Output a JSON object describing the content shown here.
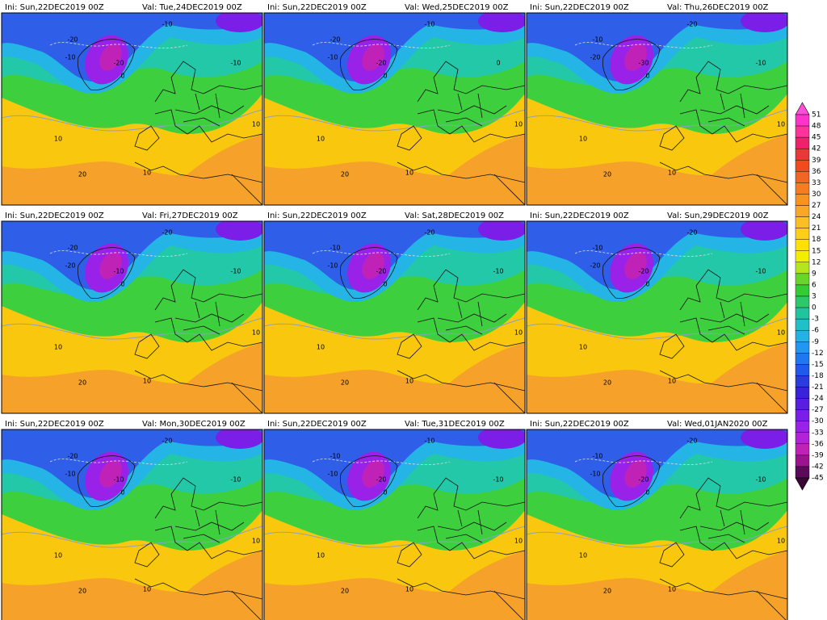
{
  "panels": [
    {
      "init": "Ini: Sun,22DEC2019 00Z",
      "valid": "Val: Tue,24DEC2019 00Z",
      "contour_labels": [
        -20,
        -10,
        -10,
        -20,
        0,
        -10,
        10,
        10,
        20,
        10
      ]
    },
    {
      "init": "Ini: Sun,22DEC2019 00Z",
      "valid": "Val: Wed,25DEC2019 00Z",
      "contour_labels": [
        -20,
        -10,
        -10,
        -20,
        0,
        0,
        10,
        10,
        20,
        10
      ]
    },
    {
      "init": "Ini: Sun,22DEC2019 00Z",
      "valid": "Val: Thu,26DEC2019 00Z",
      "contour_labels": [
        -10,
        -20,
        -20,
        -30,
        0,
        -10,
        10,
        10,
        20,
        10
      ]
    },
    {
      "init": "Ini: Sun,22DEC2019 00Z",
      "valid": "Val: Fri,27DEC2019 00Z",
      "contour_labels": [
        -20,
        -20,
        -20,
        -10,
        0,
        -10,
        10,
        10,
        20,
        10
      ]
    },
    {
      "init": "Ini: Sun,22DEC2019 00Z",
      "valid": "Val: Sat,28DEC2019 00Z",
      "contour_labels": [
        -10,
        -20,
        -10,
        -20,
        0,
        -10,
        10,
        10,
        20,
        10
      ]
    },
    {
      "init": "Ini: Sun,22DEC2019 00Z",
      "valid": "Val: Sun,29DEC2019 00Z",
      "contour_labels": [
        -10,
        -20,
        -20,
        -20,
        0,
        -10,
        10,
        10,
        20,
        10
      ]
    },
    {
      "init": "Ini: Sun,22DEC2019 00Z",
      "valid": "Val: Mon,30DEC2019 00Z",
      "contour_labels": [
        -20,
        -20,
        -10,
        -10,
        0,
        -10,
        10,
        10,
        20,
        10
      ]
    },
    {
      "init": "Ini: Sun,22DEC2019 00Z",
      "valid": "Val: Tue,31DEC2019 00Z",
      "contour_labels": [
        -10,
        -10,
        -10,
        -20,
        0,
        -10,
        10,
        10,
        20,
        10
      ]
    },
    {
      "init": "Ini: Sun,22DEC2019 00Z",
      "valid": "Val: Wed,01JAN2020 00Z",
      "contour_labels": [
        -10,
        -20,
        -10,
        -20,
        0,
        -10,
        10,
        10,
        20,
        10
      ]
    }
  ],
  "colorbar": {
    "levels": [
      51,
      48,
      45,
      42,
      39,
      36,
      33,
      30,
      27,
      24,
      21,
      18,
      15,
      12,
      9,
      6,
      3,
      0,
      -3,
      -6,
      -9,
      -12,
      -15,
      -18,
      -21,
      -24,
      -27,
      -30,
      -33,
      -36,
      -39,
      -42,
      -45
    ],
    "colors": [
      "#ff33cc",
      "#ff3399",
      "#f0206a",
      "#e83838",
      "#f04a1e",
      "#f26522",
      "#f57c20",
      "#f7931e",
      "#f9a825",
      "#fbbf24",
      "#fdd017",
      "#ffe000",
      "#f2ee00",
      "#b5e61d",
      "#66d62a",
      "#33cc33",
      "#2ec86a",
      "#22c4a0",
      "#20c0c8",
      "#22b2e6",
      "#2196f3",
      "#1e78f0",
      "#1f5aeb",
      "#2a3ce0",
      "#3a22d8",
      "#5a1ee0",
      "#7a1ee8",
      "#9a22e8",
      "#b222d8",
      "#c022b8",
      "#9a1490",
      "#5a0a5a"
    ],
    "top_color": "#ff4fd8",
    "bottom_color": "#3a0636"
  }
}
